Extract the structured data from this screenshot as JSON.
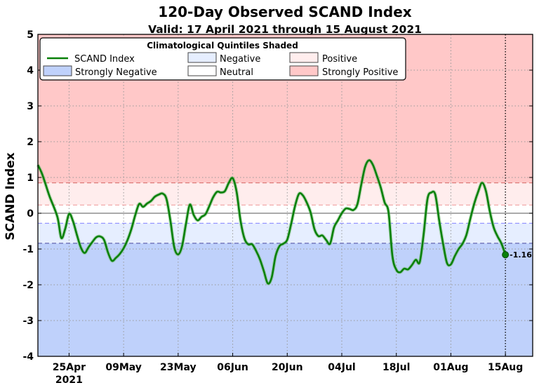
{
  "chart_data": {
    "type": "line",
    "title": "120-Day Observed SCAND Index",
    "subtitle": "Valid: 17 April 2021 through 15 August 2021",
    "xlabel": "",
    "ylabel": "SCAND Index",
    "ylim": [
      -4,
      5
    ],
    "xlim": [
      "2021-04-17",
      "2021-08-22"
    ],
    "yticks": [
      "5",
      "4",
      "3",
      "2",
      "1",
      "0",
      "-1",
      "-2",
      "-3",
      "-4"
    ],
    "xticks": [
      {
        "date": "2021-04-25",
        "label": "25Apr",
        "sublabel": "2021"
      },
      {
        "date": "2021-05-09",
        "label": "09May"
      },
      {
        "date": "2021-05-23",
        "label": "23May"
      },
      {
        "date": "2021-06-06",
        "label": "06Jun"
      },
      {
        "date": "2021-06-20",
        "label": "20Jun"
      },
      {
        "date": "2021-07-04",
        "label": "04Jul"
      },
      {
        "date": "2021-07-18",
        "label": "18Jul"
      },
      {
        "date": "2021-08-01",
        "label": "01Aug"
      },
      {
        "date": "2021-08-15",
        "label": "15Aug"
      }
    ],
    "grid": true,
    "quintile_thresholds": {
      "strongly_positive": 0.85,
      "positive": 0.23,
      "negative": -0.28,
      "strongly_negative": -0.84
    },
    "colors": {
      "line": "#088008",
      "strongly_positive": "#ffc8c8",
      "positive": "#ffeded",
      "neutral": "#ffffff",
      "negative": "#e6eeff",
      "strongly_negative": "#bfd1fb"
    },
    "series": [
      {
        "name": "SCAND Index",
        "x": [
          "2021-04-17",
          "2021-04-18",
          "2021-04-19",
          "2021-04-20",
          "2021-04-22",
          "2021-04-23",
          "2021-04-24",
          "2021-04-25",
          "2021-04-26",
          "2021-04-27",
          "2021-04-28",
          "2021-04-29",
          "2021-04-30",
          "2021-05-01",
          "2021-05-02",
          "2021-05-03",
          "2021-05-04",
          "2021-05-05",
          "2021-05-06",
          "2021-05-07",
          "2021-05-08",
          "2021-05-09",
          "2021-05-10",
          "2021-05-11",
          "2021-05-12",
          "2021-05-13",
          "2021-05-14",
          "2021-05-15",
          "2021-05-16",
          "2021-05-17",
          "2021-05-18",
          "2021-05-19",
          "2021-05-20",
          "2021-05-21",
          "2021-05-22",
          "2021-05-23",
          "2021-05-24",
          "2021-05-25",
          "2021-05-26",
          "2021-05-27",
          "2021-05-28",
          "2021-05-29",
          "2021-05-30",
          "2021-05-31",
          "2021-06-01",
          "2021-06-02",
          "2021-06-03",
          "2021-06-04",
          "2021-06-05",
          "2021-06-06",
          "2021-06-07",
          "2021-06-08",
          "2021-06-09",
          "2021-06-10",
          "2021-06-11",
          "2021-06-12",
          "2021-06-13",
          "2021-06-14",
          "2021-06-15",
          "2021-06-16",
          "2021-06-17",
          "2021-06-18",
          "2021-06-19",
          "2021-06-20",
          "2021-06-21",
          "2021-06-22",
          "2021-06-23",
          "2021-06-24",
          "2021-06-25",
          "2021-06-26",
          "2021-06-27",
          "2021-06-28",
          "2021-06-29",
          "2021-06-30",
          "2021-07-01",
          "2021-07-02",
          "2021-07-03",
          "2021-07-04",
          "2021-07-05",
          "2021-07-06",
          "2021-07-07",
          "2021-07-08",
          "2021-07-09",
          "2021-07-10",
          "2021-07-11",
          "2021-07-12",
          "2021-07-13",
          "2021-07-14",
          "2021-07-15",
          "2021-07-16",
          "2021-07-17",
          "2021-07-18",
          "2021-07-19",
          "2021-07-20",
          "2021-07-21",
          "2021-07-22",
          "2021-07-23",
          "2021-07-24",
          "2021-07-25",
          "2021-07-26",
          "2021-07-27",
          "2021-07-28",
          "2021-07-29",
          "2021-07-30",
          "2021-07-31",
          "2021-08-01",
          "2021-08-02",
          "2021-08-03",
          "2021-08-04",
          "2021-08-05",
          "2021-08-06",
          "2021-08-07",
          "2021-08-08",
          "2021-08-09",
          "2021-08-10",
          "2021-08-11",
          "2021-08-12",
          "2021-08-13",
          "2021-08-14",
          "2021-08-15"
        ],
        "values": [
          1.35,
          1.12,
          0.8,
          0.47,
          -0.1,
          -0.69,
          -0.44,
          -0.02,
          -0.22,
          -0.6,
          -0.95,
          -1.11,
          -0.95,
          -0.8,
          -0.67,
          -0.65,
          -0.75,
          -1.1,
          -1.33,
          -1.25,
          -1.14,
          -0.98,
          -0.75,
          -0.44,
          -0.05,
          0.26,
          0.18,
          0.27,
          0.34,
          0.46,
          0.52,
          0.55,
          0.4,
          -0.2,
          -0.95,
          -1.15,
          -0.92,
          -0.3,
          0.24,
          -0.05,
          -0.2,
          -0.1,
          -0.03,
          0.2,
          0.45,
          0.6,
          0.58,
          0.62,
          0.85,
          0.98,
          0.6,
          -0.2,
          -0.7,
          -0.87,
          -0.87,
          -1.05,
          -1.29,
          -1.62,
          -1.96,
          -1.8,
          -1.2,
          -0.92,
          -0.85,
          -0.74,
          -0.3,
          0.2,
          0.54,
          0.5,
          0.3,
          0.02,
          -0.45,
          -0.64,
          -0.62,
          -0.75,
          -0.85,
          -0.4,
          -0.2,
          0.0,
          0.13,
          0.12,
          0.09,
          0.25,
          0.8,
          1.3,
          1.48,
          1.35,
          1.05,
          0.72,
          0.3,
          0.03,
          -1.2,
          -1.58,
          -1.65,
          -1.55,
          -1.57,
          -1.45,
          -1.3,
          -1.37,
          -0.6,
          0.4,
          0.58,
          0.52,
          -0.2,
          -0.85,
          -1.39,
          -1.43,
          -1.2,
          -1.0,
          -0.85,
          -0.6,
          -0.15,
          0.27,
          0.6,
          0.85,
          0.62,
          0.05,
          -0.4,
          -0.65,
          -0.85,
          -1.16
        ]
      }
    ],
    "last_value_label": "-1.16",
    "legend": {
      "title": "Climatological Quintiles Shaded",
      "placement": "top-left",
      "entries": [
        "SCAND Index",
        "Negative",
        "Positive",
        "Strongly Negative",
        "Neutral",
        "Strongly Positive"
      ]
    }
  }
}
